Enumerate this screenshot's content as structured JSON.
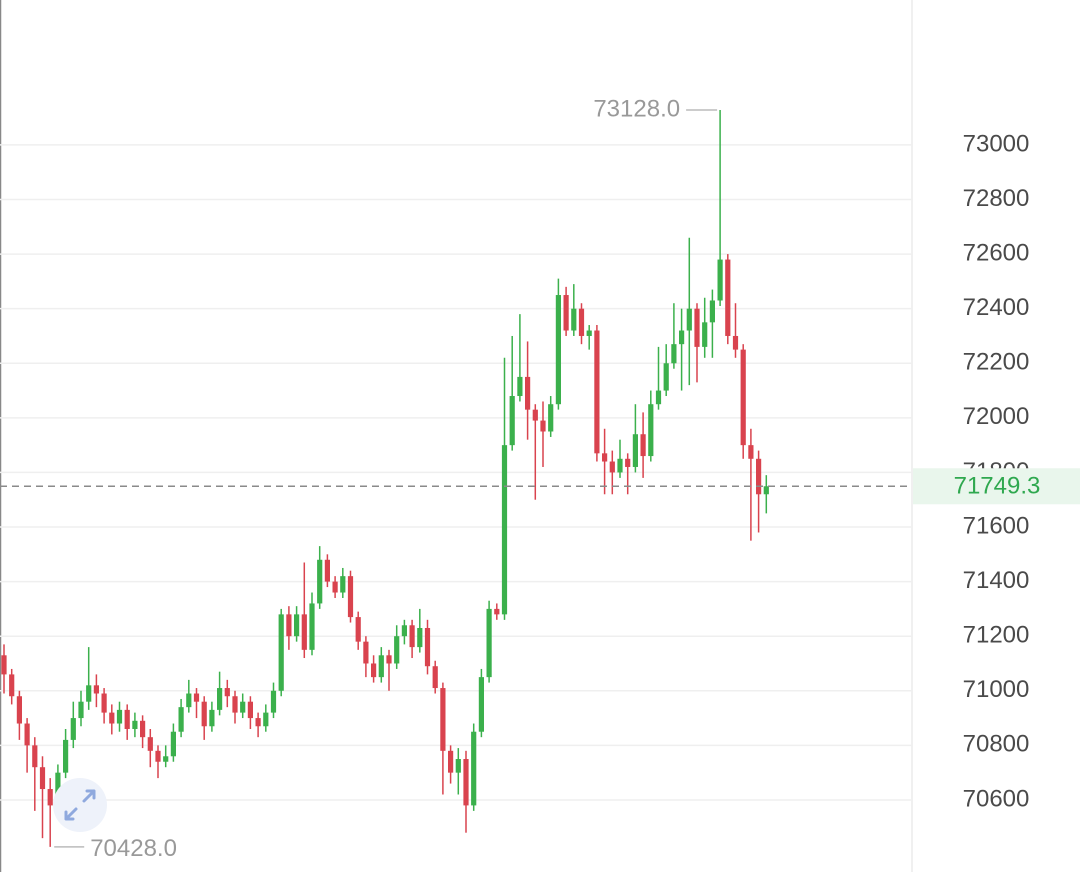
{
  "chart_data": {
    "type": "candlestick",
    "open": [
      71130,
      71060,
      70980,
      70880,
      70800,
      70720,
      70640,
      70580,
      70700,
      70820,
      70900,
      70960,
      71020,
      70990,
      70920,
      70880,
      70930,
      70860,
      70890,
      70830,
      70780,
      70740,
      70760,
      70850,
      70940,
      70990,
      70960,
      70870,
      70930,
      71010,
      70980,
      70920,
      70960,
      70900,
      70870,
      70920,
      71000,
      71280,
      71200,
      71280,
      71150,
      71320,
      71480,
      71400,
      71360,
      71420,
      71270,
      71180,
      71100,
      71050,
      71130,
      71100,
      71200,
      71240,
      71160,
      71230,
      71090,
      71010,
      70780,
      70700,
      70750,
      70580,
      70850,
      71050,
      71300,
      71280,
      71900,
      72080,
      72150,
      72030,
      71990,
      71950,
      72050,
      72450,
      72320,
      72400,
      72300,
      72320,
      71870,
      71840,
      71800,
      71850,
      71820,
      71940,
      71860,
      72050,
      72100,
      72200,
      72270,
      72320,
      72400,
      72260,
      72350,
      72430,
      72580,
      72300,
      72250,
      71900,
      71850,
      71720
    ],
    "high": [
      71170,
      71080,
      71000,
      70900,
      70830,
      70760,
      70680,
      70730,
      70860,
      70960,
      71000,
      71160,
      71060,
      71010,
      70950,
      70960,
      70950,
      70920,
      70910,
      70860,
      70800,
      70800,
      70880,
      70970,
      71040,
      71010,
      70980,
      70960,
      71070,
      71040,
      71000,
      70990,
      70980,
      70920,
      70950,
      71030,
      71300,
      71310,
      71310,
      71470,
      71360,
      71530,
      71500,
      71420,
      71450,
      71440,
      71290,
      71200,
      71130,
      71160,
      71150,
      71240,
      71260,
      71260,
      71300,
      71260,
      71110,
      71030,
      70800,
      70790,
      70780,
      70880,
      71080,
      71330,
      71320,
      72220,
      72300,
      72380,
      72280,
      72050,
      72060,
      72080,
      72510,
      72480,
      72490,
      72420,
      72340,
      72340,
      71960,
      71880,
      71920,
      71870,
      72050,
      72020,
      72100,
      72260,
      72270,
      72420,
      72400,
      72660,
      72420,
      72440,
      72470,
      73128,
      72600,
      72420,
      72270,
      71960,
      71880,
      71790
    ],
    "low": [
      70990,
      70950,
      70820,
      70700,
      70560,
      70460,
      70428,
      70560,
      70680,
      70790,
      70870,
      70930,
      70940,
      70880,
      70840,
      70850,
      70820,
      70830,
      70790,
      70720,
      70680,
      70720,
      70740,
      70830,
      70920,
      70900,
      70820,
      70850,
      70910,
      70940,
      70880,
      70900,
      70860,
      70830,
      70850,
      70900,
      70980,
      71150,
      71180,
      71120,
      71130,
      71300,
      71380,
      71340,
      71340,
      71250,
      71150,
      71050,
      71030,
      71030,
      71000,
      71080,
      71170,
      71120,
      71140,
      71060,
      70990,
      70620,
      70660,
      70620,
      70480,
      70560,
      70830,
      71030,
      71260,
      71260,
      71880,
      72060,
      71920,
      71700,
      71820,
      71930,
      72030,
      72300,
      72300,
      72270,
      72250,
      71840,
      71720,
      71720,
      71780,
      71720,
      71800,
      71780,
      71840,
      72030,
      72080,
      72180,
      72100,
      72120,
      72130,
      72220,
      72220,
      72410,
      72270,
      72220,
      71850,
      71550,
      71580,
      71650
    ],
    "close": [
      71060,
      70980,
      70880,
      70800,
      70720,
      70640,
      70580,
      70700,
      70820,
      70900,
      70960,
      71020,
      70990,
      70920,
      70880,
      70930,
      70860,
      70890,
      70830,
      70780,
      70740,
      70760,
      70850,
      70940,
      70990,
      70960,
      70870,
      70930,
      71010,
      70980,
      70920,
      70960,
      70900,
      70870,
      70920,
      71000,
      71280,
      71200,
      71280,
      71150,
      71320,
      71480,
      71400,
      71360,
      71420,
      71270,
      71180,
      71100,
      71050,
      71130,
      71100,
      71200,
      71240,
      71160,
      71230,
      71090,
      71010,
      70780,
      70700,
      70750,
      70580,
      70850,
      71050,
      71300,
      71280,
      71900,
      72080,
      72150,
      72030,
      71990,
      71950,
      72050,
      72450,
      72320,
      72400,
      72300,
      72320,
      71870,
      71840,
      71800,
      71850,
      71820,
      71940,
      71860,
      72050,
      72100,
      72200,
      72270,
      72320,
      72400,
      72260,
      72350,
      72430,
      72580,
      72300,
      72250,
      71900,
      71850,
      71720,
      71749.3
    ],
    "up_color": "#3bb04c",
    "down_color": "#d9434e",
    "ylim": [
      70336,
      73531
    ],
    "yticks": [
      70600,
      70800,
      71000,
      71200,
      71400,
      71600,
      71800,
      72000,
      72200,
      72400,
      72600,
      72800,
      73000
    ],
    "grid": true,
    "annotations": [
      {
        "value": 73128,
        "label": "73128.0"
      },
      {
        "value": 70428,
        "label": "70428.0"
      }
    ],
    "last_price": 71749.3
  }
}
